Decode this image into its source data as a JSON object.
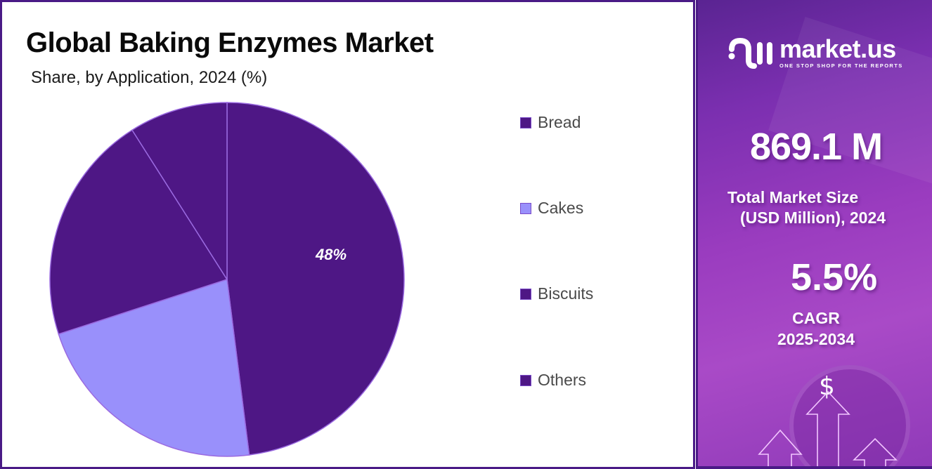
{
  "header": {
    "title": "Global Baking Enzymes Market",
    "subtitle": "Share, by Application, 2024 (%)"
  },
  "chart_data": {
    "type": "pie",
    "title": "Global Baking Enzymes Market",
    "subtitle": "Share, by Application, 2024 (%)",
    "categories": [
      "Bread",
      "Cakes",
      "Biscuits",
      "Others"
    ],
    "values": [
      48,
      22,
      21,
      9
    ],
    "colors": [
      "#4e1785",
      "#9990fb",
      "#4e1785",
      "#4e1785"
    ],
    "data_labels": [
      {
        "category": "Bread",
        "text": "48%"
      }
    ],
    "start_angle_deg": 0,
    "direction": "clockwise",
    "legend_position": "right",
    "slice_border_color": "#9a6ae0"
  },
  "legend": {
    "items": [
      {
        "label": "Bread",
        "color": "#4e1785"
      },
      {
        "label": "Cakes",
        "color": "#9990fb"
      },
      {
        "label": "Biscuits",
        "color": "#4e1785"
      },
      {
        "label": "Others",
        "color": "#4e1785"
      }
    ]
  },
  "pie_label": "48%",
  "sidebar": {
    "logo_name": "market.us",
    "logo_tagline": "ONE STOP SHOP FOR THE REPORTS",
    "market_size_value": "869.1 M",
    "market_size_label_line1": "Total Market Size",
    "market_size_label_line2": "(USD Million), 2024",
    "cagr_value": "5.5%",
    "cagr_label": "CAGR",
    "cagr_period": "2025-2034",
    "dollar_symbol": "$"
  },
  "colors": {
    "border": "#4a1a86",
    "primary_slice": "#4e1785",
    "secondary_slice": "#9990fb",
    "sidebar_gradient_start": "#5a2492",
    "sidebar_gradient_end": "#a94ac7"
  }
}
